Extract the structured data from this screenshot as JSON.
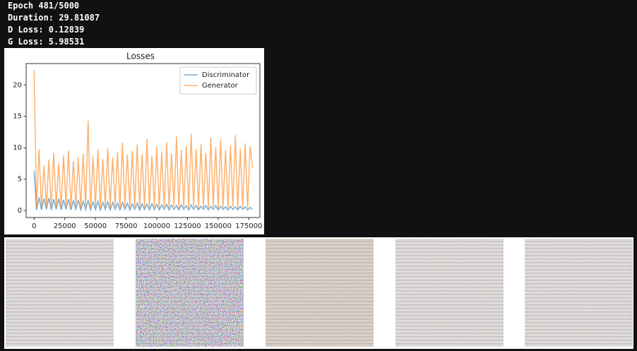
{
  "header": {
    "lines": [
      "Epoch 481/5000",
      "Duration: 29.81087",
      "D Loss: 0.12839",
      "G Loss: 5.98531"
    ]
  },
  "chart_data": {
    "type": "line",
    "title": "Losses",
    "x": [
      0,
      2000,
      4000,
      6000,
      8000,
      10000,
      12000,
      14000,
      16000,
      18000,
      20000,
      22000,
      24000,
      26000,
      28000,
      30000,
      32000,
      34000,
      36000,
      38000,
      40000,
      42000,
      44000,
      46000,
      48000,
      50000,
      52000,
      54000,
      56000,
      58000,
      60000,
      62000,
      64000,
      66000,
      68000,
      70000,
      72000,
      74000,
      76000,
      78000,
      80000,
      82000,
      84000,
      86000,
      88000,
      90000,
      92000,
      94000,
      96000,
      98000,
      100000,
      102000,
      104000,
      106000,
      108000,
      110000,
      112000,
      114000,
      116000,
      118000,
      120000,
      122000,
      124000,
      126000,
      128000,
      130000,
      132000,
      134000,
      136000,
      138000,
      140000,
      142000,
      144000,
      146000,
      148000,
      150000,
      152000,
      154000,
      156000,
      158000,
      160000,
      162000,
      164000,
      166000,
      168000,
      170000,
      172000,
      174000,
      176000,
      178000
    ],
    "series": [
      {
        "name": "Discriminator",
        "color": "#1f77b4",
        "values": [
          6.3,
          0.1,
          2.1,
          0.1,
          1.9,
          0.2,
          2.0,
          0.1,
          1.8,
          0.2,
          1.9,
          0.1,
          1.7,
          0.2,
          1.8,
          0.1,
          1.6,
          0.2,
          1.7,
          0.1,
          1.5,
          0.2,
          1.6,
          0.1,
          1.4,
          0.2,
          1.5,
          0.1,
          1.3,
          0.2,
          1.4,
          0.1,
          1.3,
          0.2,
          1.2,
          0.1,
          1.3,
          0.2,
          1.2,
          0.1,
          1.1,
          0.2,
          1.2,
          0.1,
          1.1,
          0.2,
          1.0,
          0.1,
          1.1,
          0.2,
          1.0,
          0.1,
          0.9,
          0.2,
          1.0,
          0.1,
          0.9,
          0.2,
          0.8,
          0.1,
          0.9,
          0.2,
          0.8,
          0.1,
          0.9,
          0.2,
          0.8,
          0.1,
          0.7,
          0.2,
          0.8,
          0.1,
          0.7,
          0.2,
          0.8,
          0.1,
          0.7,
          0.2,
          0.6,
          0.1,
          0.7,
          0.2,
          0.6,
          0.1,
          0.7,
          0.2,
          0.6,
          0.1,
          0.5,
          0.2
        ]
      },
      {
        "name": "Generator",
        "color": "#ff7f0e",
        "values": [
          22.3,
          0.3,
          9.8,
          0.4,
          7.2,
          0.5,
          8.1,
          0.3,
          9.2,
          0.6,
          7.5,
          0.4,
          8.8,
          0.5,
          9.6,
          0.3,
          7.9,
          0.6,
          8.4,
          0.4,
          9.1,
          0.5,
          14.3,
          0.3,
          8.6,
          0.6,
          9.7,
          0.4,
          8.2,
          0.5,
          9.9,
          0.4,
          8.5,
          0.6,
          9.3,
          0.3,
          10.8,
          0.5,
          8.9,
          0.4,
          9.5,
          0.6,
          10.5,
          0.3,
          9.0,
          0.5,
          11.5,
          0.4,
          8.7,
          0.6,
          10.2,
          0.3,
          9.4,
          0.5,
          10.9,
          0.4,
          9.1,
          0.6,
          11.8,
          0.3,
          9.6,
          0.5,
          10.3,
          0.4,
          12.2,
          0.6,
          9.8,
          0.3,
          10.6,
          0.5,
          9.2,
          0.4,
          11.6,
          0.6,
          10.1,
          0.3,
          11.3,
          0.5,
          9.7,
          0.4,
          10.4,
          0.6,
          12.0,
          0.3,
          9.9,
          0.5,
          10.7,
          0.4,
          10.3,
          6.8
        ]
      }
    ],
    "xlim": [
      -6500,
      184000
    ],
    "ylim": [
      -1.1,
      23.4
    ],
    "xticks": [
      0,
      25000,
      50000,
      75000,
      100000,
      125000,
      150000,
      175000
    ],
    "yticks": [
      0,
      5,
      10,
      15,
      20
    ],
    "legend": "upper right"
  }
}
